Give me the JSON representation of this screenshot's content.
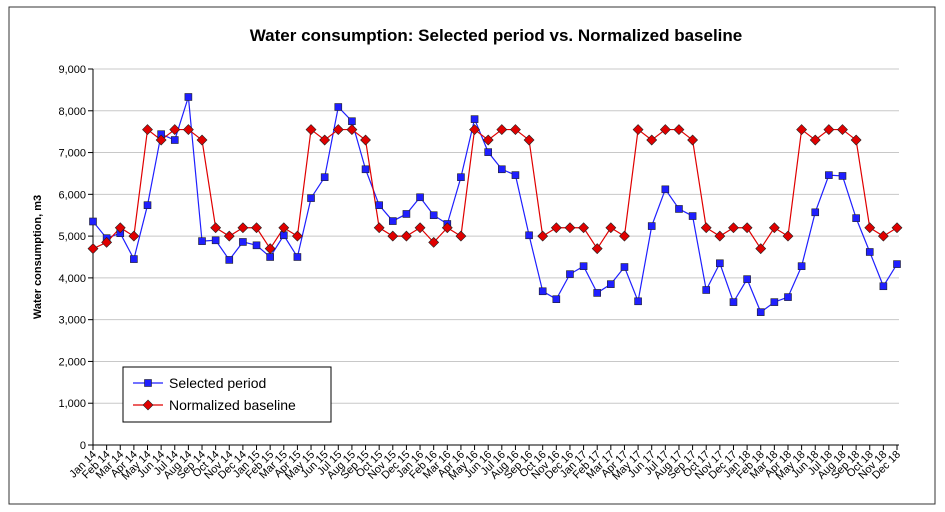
{
  "chart_data": {
    "type": "line",
    "title": "Water consumption: Selected period vs. Normalized baseline",
    "y_label": "Water consumption, m3",
    "categories": [
      "Jan 14",
      "Feb 14",
      "Mar 14",
      "Apr 14",
      "May 14",
      "Jun 14",
      "Jul 14",
      "Aug 14",
      "Sep 14",
      "Oct 14",
      "Nov 14",
      "Dec 14",
      "Jan 15",
      "Feb 15",
      "Mar 15",
      "Apr 15",
      "May 15",
      "Jun 15",
      "Jul 15",
      "Aug 15",
      "Sep 15",
      "Oct 15",
      "Nov 15",
      "Dec 15",
      "Jan 16",
      "Feb 16",
      "Mar 16",
      "Apr 16",
      "May 16",
      "Jun 16",
      "Jul 16",
      "Aug 16",
      "Sep 16",
      "Oct 16",
      "Nov 16",
      "Dec 16",
      "Jan 17",
      "Feb 17",
      "Mar 17",
      "Apr 17",
      "May 17",
      "Jun 17",
      "Jul 17",
      "Aug 17",
      "Sep 17",
      "Oct 17",
      "Nov 17",
      "Dec 17",
      "Jan 18",
      "Feb 18",
      "Mar 18",
      "Apr 18",
      "May 18",
      "Jun 18",
      "Jul 18",
      "Aug 18",
      "Sep 18",
      "Oct 18",
      "Nov 18",
      "Dec 18"
    ],
    "series": [
      {
        "name": "Selected period",
        "color": "#1f1fff",
        "marker": "square",
        "values": [
          5350,
          4950,
          5070,
          4450,
          5740,
          7440,
          7300,
          8330,
          4880,
          4900,
          4430,
          4860,
          4780,
          4500,
          5020,
          4500,
          5910,
          6410,
          8090,
          7750,
          6600,
          5740,
          5360,
          5530,
          5930,
          5500,
          5290,
          6410,
          7800,
          7010,
          6600,
          6460,
          5020,
          3680,
          3490,
          4090,
          4280,
          3640,
          3850,
          4260,
          3440,
          5240,
          6120,
          5650,
          5480,
          3710,
          4350,
          3420,
          3970,
          3180,
          3420,
          3540,
          4280,
          5570,
          6460,
          6440,
          5430,
          4620,
          3800,
          4330
        ]
      },
      {
        "name": "Normalized baseline",
        "color": "#e00000",
        "marker": "diamond",
        "values": [
          4700,
          4850,
          5200,
          5000,
          7550,
          7300,
          7550,
          7550,
          7300,
          5200,
          5000,
          5200,
          5200,
          4700,
          5200,
          5000,
          7550,
          7300,
          7550,
          7550,
          7300,
          5200,
          5000,
          5000,
          5200,
          4850,
          5200,
          5000,
          7550,
          7300,
          7550,
          7550,
          7300,
          5000,
          5200,
          5200,
          5200,
          4700,
          5200,
          5000,
          7550,
          7300,
          7550,
          7550,
          7300,
          5200,
          5000,
          5200,
          5200,
          4700,
          5200,
          5000,
          7550,
          7300,
          7550,
          7550,
          7300,
          5200,
          5000,
          5200
        ]
      }
    ],
    "ylim": [
      0,
      9000
    ],
    "yticks": [
      0,
      {
        "value": 1000,
        "label": "1,000"
      },
      {
        "value": 2000,
        "label": "2,000"
      },
      {
        "value": 3000,
        "label": "3,000"
      },
      {
        "value": 4000,
        "label": "4,000"
      },
      {
        "value": 5000,
        "label": "5,000"
      },
      {
        "value": 6000,
        "label": "6,000"
      },
      {
        "value": 7000,
        "label": "7,000"
      },
      {
        "value": 8000,
        "label": "8,000"
      },
      {
        "value": 9000,
        "label": "9,000"
      }
    ],
    "grid": true,
    "legend": "lower left"
  }
}
